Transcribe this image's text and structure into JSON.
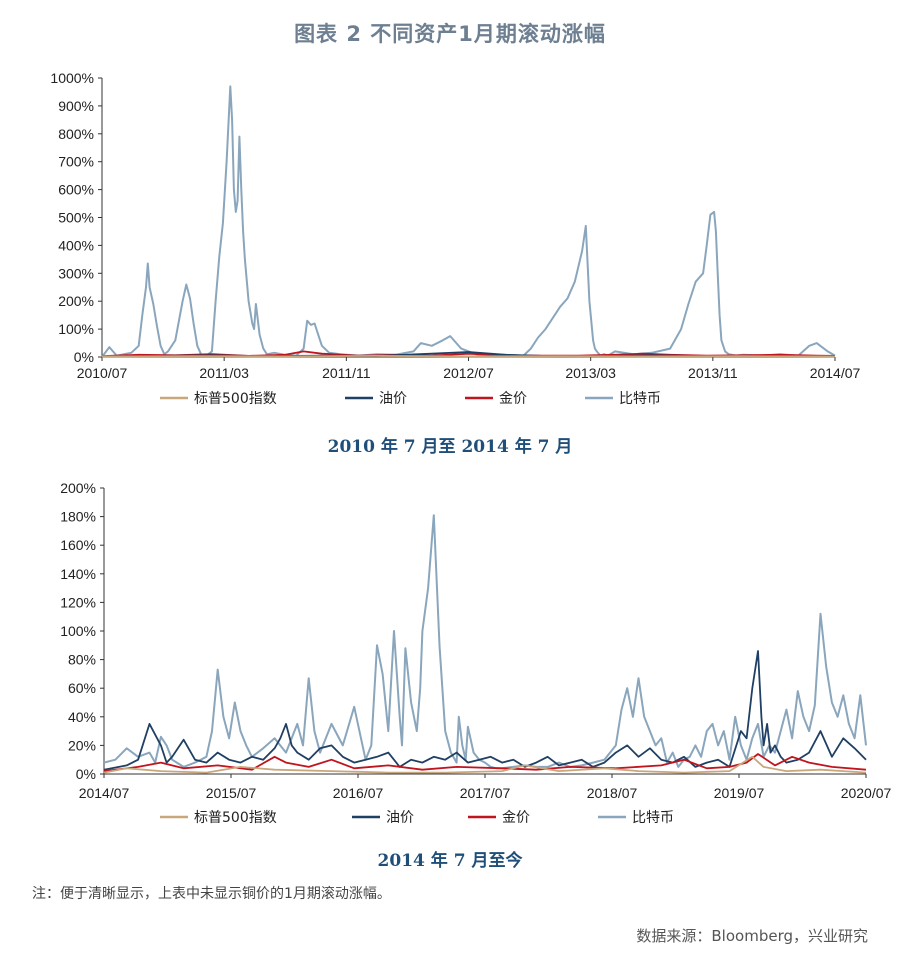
{
  "title": "图表 2 不同资产1月期滚动涨幅",
  "note": "注：便于清晰显示，上表中未显示铜价的1月期滚动涨幅。",
  "source": "数据来源：Bloomberg，兴业研究",
  "colors": {
    "sp500": "#c9a77c",
    "oil": "#1f3f63",
    "gold": "#c0141e",
    "btc": "#8aa6bd"
  },
  "chart_data": [
    {
      "type": "line",
      "subtitle": "2010 年 7 月至 2014 年 7 月",
      "ylabels": [
        "0%",
        "100%",
        "200%",
        "300%",
        "400%",
        "500%",
        "600%",
        "700%",
        "800%",
        "900%",
        "1000%"
      ],
      "xlabels": [
        "2010/07",
        "2011/03",
        "2011/11",
        "2012/07",
        "2013/03",
        "2013/11",
        "2014/07"
      ],
      "ylim": [
        0,
        1000
      ],
      "xlim": [
        2010.5,
        2014.5
      ],
      "legend": [
        "标普500指数",
        "油价",
        "金价",
        "比特币"
      ],
      "series": [
        {
          "name": "比特币",
          "color": "btc",
          "x": [
            2010.5,
            2010.54,
            2010.58,
            2010.62,
            2010.66,
            2010.7,
            2010.72,
            2010.74,
            2010.75,
            2010.76,
            2010.78,
            2010.8,
            2010.82,
            2010.84,
            2010.86,
            2010.9,
            2010.94,
            2010.96,
            2010.98,
            2011.0,
            2011.02,
            2011.04,
            2011.06,
            2011.08,
            2011.1,
            2011.12,
            2011.14,
            2011.16,
            2011.18,
            2011.2,
            2011.21,
            2011.22,
            2011.23,
            2011.24,
            2011.25,
            2011.26,
            2011.27,
            2011.28,
            2011.3,
            2011.32,
            2011.33,
            2011.34,
            2011.36,
            2011.38,
            2011.4,
            2011.44,
            2011.5,
            2011.56,
            2011.6,
            2011.62,
            2011.64,
            2011.66,
            2011.68,
            2011.7,
            2011.74,
            2011.8,
            2011.9,
            2012.0,
            2012.1,
            2012.2,
            2012.24,
            2012.3,
            2012.36,
            2012.4,
            2012.46,
            2012.54,
            2012.6,
            2012.7,
            2012.8,
            2012.84,
            2012.88,
            2012.92,
            2012.96,
            2013.0,
            2013.04,
            2013.08,
            2013.12,
            2013.14,
            2013.16,
            2013.18,
            2013.19,
            2013.2,
            2013.22,
            2013.24,
            2013.26,
            2013.3,
            2013.4,
            2013.5,
            2013.6,
            2013.66,
            2013.7,
            2013.74,
            2013.78,
            2013.8,
            2013.82,
            2013.84,
            2013.85,
            2013.86,
            2013.87,
            2013.88,
            2013.9,
            2013.92,
            2013.96,
            2014.0,
            2014.1,
            2014.2,
            2014.3,
            2014.36,
            2014.4,
            2014.46,
            2014.5
          ],
          "y": [
            0,
            35,
            5,
            10,
            15,
            40,
            150,
            250,
            335,
            250,
            190,
            110,
            40,
            10,
            20,
            60,
            200,
            260,
            210,
            120,
            40,
            10,
            5,
            10,
            20,
            200,
            360,
            480,
            700,
            970,
            850,
            600,
            520,
            560,
            790,
            600,
            450,
            350,
            200,
            120,
            100,
            190,
            80,
            30,
            10,
            15,
            8,
            5,
            30,
            130,
            115,
            120,
            80,
            40,
            15,
            10,
            5,
            10,
            8,
            20,
            50,
            40,
            60,
            75,
            30,
            10,
            5,
            8,
            5,
            30,
            70,
            100,
            140,
            180,
            210,
            270,
            380,
            470,
            200,
            60,
            30,
            20,
            5,
            10,
            5,
            20,
            10,
            15,
            30,
            100,
            190,
            270,
            300,
            400,
            510,
            520,
            450,
            300,
            150,
            60,
            20,
            10,
            5,
            8,
            5,
            10,
            5,
            40,
            50,
            20,
            5
          ]
        },
        {
          "name": "金价",
          "color": "gold",
          "x": [
            2010.5,
            2010.7,
            2010.9,
            2011.1,
            2011.3,
            2011.5,
            2011.6,
            2011.7,
            2011.9,
            2012.1,
            2012.3,
            2012.5,
            2012.7,
            2012.9,
            2013.1,
            2013.3,
            2013.45,
            2013.6,
            2013.8,
            2014.0,
            2014.2,
            2014.4,
            2014.5
          ],
          "y": [
            3,
            8,
            6,
            10,
            4,
            8,
            20,
            12,
            5,
            8,
            5,
            12,
            6,
            5,
            5,
            8,
            12,
            8,
            5,
            6,
            8,
            5,
            4
          ]
        },
        {
          "name": "油价",
          "color": "oil",
          "x": [
            2010.5,
            2010.8,
            2011.1,
            2011.4,
            2011.7,
            2012.0,
            2012.3,
            2012.5,
            2012.7,
            2012.9,
            2013.2,
            2013.5,
            2013.8,
            2014.1,
            2014.5
          ],
          "y": [
            2,
            4,
            6,
            3,
            5,
            4,
            12,
            18,
            8,
            4,
            3,
            6,
            3,
            4,
            3
          ]
        },
        {
          "name": "标普500指数",
          "color": "sp500",
          "x": [
            2010.5,
            2011.0,
            2011.5,
            2012.0,
            2012.5,
            2013.0,
            2013.5,
            2014.0,
            2014.5
          ],
          "y": [
            2,
            3,
            2,
            4,
            2,
            3,
            2,
            3,
            2
          ]
        }
      ]
    },
    {
      "type": "line",
      "subtitle": "2014 年 7 月至今",
      "ylabels": [
        "0%",
        "20%",
        "40%",
        "60%",
        "80%",
        "100%",
        "120%",
        "140%",
        "160%",
        "180%",
        "200%"
      ],
      "xlabels": [
        "2014/07",
        "2015/07",
        "2016/07",
        "2017/07",
        "2018/07",
        "2019/07",
        "2020/07"
      ],
      "ylim": [
        0,
        200
      ],
      "xlim": [
        2014.5,
        2021.2
      ],
      "legend": [
        "标普500指数",
        "油价",
        "金价",
        "比特币"
      ],
      "series": [
        {
          "name": "比特币",
          "color": "btc",
          "x": [
            2014.5,
            2014.6,
            2014.7,
            2014.8,
            2014.9,
            2014.95,
            2015.0,
            2015.05,
            2015.1,
            2015.2,
            2015.3,
            2015.4,
            2015.45,
            2015.5,
            2015.55,
            2015.6,
            2015.65,
            2015.7,
            2015.75,
            2015.8,
            2015.9,
            2016.0,
            2016.1,
            2016.2,
            2016.25,
            2016.3,
            2016.35,
            2016.4,
            2016.5,
            2016.6,
            2016.7,
            2016.8,
            2016.85,
            2016.9,
            2016.95,
            2017.0,
            2017.05,
            2017.1,
            2017.12,
            2017.15,
            2017.2,
            2017.25,
            2017.28,
            2017.3,
            2017.35,
            2017.4,
            2017.45,
            2017.5,
            2017.55,
            2017.6,
            2017.62,
            2017.65,
            2017.68,
            2017.7,
            2017.75,
            2017.8,
            2017.85,
            2017.9,
            2017.95,
            2018.0,
            2018.1,
            2018.2,
            2018.3,
            2018.4,
            2018.5,
            2018.6,
            2018.7,
            2018.8,
            2018.9,
            2019.0,
            2019.05,
            2019.1,
            2019.15,
            2019.2,
            2019.25,
            2019.3,
            2019.35,
            2019.4,
            2019.45,
            2019.5,
            2019.55,
            2019.6,
            2019.65,
            2019.7,
            2019.75,
            2019.8,
            2019.85,
            2019.9,
            2019.95,
            2020.0,
            2020.05,
            2020.1,
            2020.15,
            2020.2,
            2020.25,
            2020.3,
            2020.35,
            2020.4,
            2020.45,
            2020.5,
            2020.55,
            2020.6,
            2020.65,
            2020.7,
            2020.75,
            2020.8,
            2020.85,
            2020.9,
            2020.95,
            2021.0,
            2021.05,
            2021.1,
            2021.15,
            2021.2
          ],
          "y": [
            8,
            10,
            18,
            12,
            15,
            8,
            26,
            20,
            10,
            5,
            8,
            12,
            30,
            73,
            40,
            25,
            50,
            30,
            20,
            12,
            18,
            25,
            15,
            35,
            20,
            67,
            30,
            15,
            35,
            20,
            47,
            10,
            20,
            90,
            70,
            30,
            100,
            40,
            20,
            88,
            50,
            30,
            60,
            100,
            130,
            181,
            90,
            30,
            15,
            8,
            40,
            20,
            10,
            33,
            15,
            10,
            8,
            5,
            4,
            4,
            5,
            6,
            5,
            5,
            8,
            5,
            6,
            8,
            10,
            20,
            45,
            60,
            40,
            67,
            40,
            30,
            20,
            25,
            8,
            15,
            5,
            10,
            12,
            20,
            12,
            30,
            35,
            20,
            30,
            10,
            40,
            20,
            10,
            25,
            35,
            12,
            20,
            15,
            30,
            45,
            25,
            58,
            40,
            30,
            48,
            112,
            75,
            50,
            40,
            55,
            35,
            25,
            55,
            20
          ]
        },
        {
          "name": "油价",
          "color": "oil",
          "x": [
            2014.5,
            2014.7,
            2014.8,
            2014.9,
            2015.0,
            2015.05,
            2015.1,
            2015.2,
            2015.3,
            2015.4,
            2015.5,
            2015.6,
            2015.7,
            2015.8,
            2015.9,
            2016.0,
            2016.05,
            2016.1,
            2016.15,
            2016.2,
            2016.3,
            2016.4,
            2016.5,
            2016.6,
            2016.7,
            2016.8,
            2016.9,
            2017.0,
            2017.1,
            2017.2,
            2017.3,
            2017.4,
            2017.5,
            2017.6,
            2017.7,
            2017.8,
            2017.9,
            2018.0,
            2018.1,
            2018.2,
            2018.3,
            2018.4,
            2018.5,
            2018.6,
            2018.7,
            2018.8,
            2018.9,
            2019.0,
            2019.1,
            2019.2,
            2019.3,
            2019.4,
            2019.5,
            2019.6,
            2019.7,
            2019.8,
            2019.9,
            2020.0,
            2020.1,
            2020.15,
            2020.2,
            2020.25,
            2020.28,
            2020.3,
            2020.33,
            2020.36,
            2020.4,
            2020.45,
            2020.5,
            2020.6,
            2020.7,
            2020.8,
            2020.9,
            2021.0,
            2021.1,
            2021.2
          ],
          "y": [
            3,
            6,
            10,
            35,
            20,
            8,
            12,
            24,
            10,
            8,
            15,
            10,
            8,
            12,
            10,
            18,
            25,
            35,
            20,
            15,
            10,
            18,
            20,
            12,
            8,
            10,
            12,
            15,
            5,
            10,
            8,
            12,
            10,
            15,
            8,
            10,
            12,
            8,
            10,
            5,
            8,
            12,
            6,
            8,
            10,
            5,
            8,
            15,
            20,
            12,
            18,
            10,
            8,
            12,
            5,
            8,
            10,
            5,
            30,
            25,
            60,
            86,
            40,
            20,
            35,
            15,
            20,
            12,
            8,
            10,
            15,
            30,
            12,
            25,
            18,
            10
          ]
        },
        {
          "name": "金价",
          "color": "gold",
          "x": [
            2014.5,
            2014.8,
            2015.0,
            2015.2,
            2015.5,
            2015.8,
            2016.0,
            2016.1,
            2016.3,
            2016.5,
            2016.7,
            2017.0,
            2017.3,
            2017.6,
            2018.0,
            2018.3,
            2018.6,
            2019.0,
            2019.4,
            2019.6,
            2019.8,
            2020.0,
            2020.15,
            2020.25,
            2020.4,
            2020.55,
            2020.7,
            2020.9,
            2021.2
          ],
          "y": [
            2,
            5,
            8,
            4,
            6,
            3,
            12,
            8,
            5,
            10,
            4,
            6,
            3,
            5,
            4,
            3,
            5,
            4,
            6,
            10,
            4,
            5,
            8,
            14,
            6,
            12,
            8,
            5,
            3
          ]
        },
        {
          "name": "标普500指数",
          "color": "sp500",
          "x": [
            2014.5,
            2014.7,
            2015.0,
            2015.4,
            2015.7,
            2016.0,
            2016.5,
            2017.0,
            2017.5,
            2018.0,
            2018.2,
            2018.5,
            2018.9,
            2019.2,
            2019.6,
            2020.0,
            2020.2,
            2020.3,
            2020.5,
            2020.8,
            2021.0,
            2021.2
          ],
          "y": [
            1,
            4,
            2,
            1,
            5,
            3,
            2,
            1,
            1,
            2,
            6,
            2,
            4,
            2,
            1,
            2,
            12,
            5,
            2,
            3,
            2,
            1
          ]
        }
      ]
    }
  ]
}
